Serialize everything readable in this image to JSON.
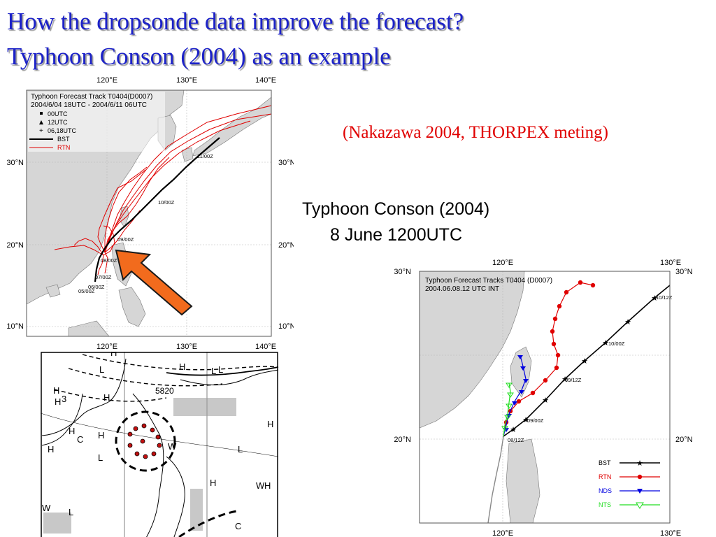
{
  "slide": {
    "title_line1": "How the dropsonde data improve the forecast?",
    "title_line2": "Typhoon Conson (2004) as an example",
    "citation": "(Nakazawa 2004, THORPEX meting)",
    "subtitle_line1": "Typhoon Conson (2004)",
    "subtitle_line2": "8 June 1200UTC"
  },
  "colors": {
    "title": "#1c22c8",
    "citation": "#e00000",
    "bst": "#000000",
    "rtn": "#e00000",
    "nds": "#0000e0",
    "nts": "#22dd22",
    "land": "#d6d6d6",
    "arrow": "#f26b1d"
  },
  "map_left": {
    "header_line1": "Typhoon Forecast Track T0404(D0007)",
    "header_line2": "2004/6/04 18UTC - 2004/6/11 06UTC",
    "legend": [
      "00UTC",
      "12UTC",
      "06,18UTC",
      "BST",
      "RTN"
    ],
    "top_ticks": [
      "120°E",
      "130°E",
      "140°E"
    ],
    "bottom_ticks": [
      "120°E",
      "130°E",
      "140°E"
    ],
    "left_ticks": [
      "30°N",
      "20°N",
      "10°N"
    ],
    "right_ticks": [
      "30°N",
      "20°N",
      "10°N"
    ],
    "track_labels": [
      "11/00Z",
      "10/00Z",
      "09/00Z",
      "08/00Z",
      "07/00Z",
      "06/00Z",
      "05/00Z"
    ]
  },
  "map_right": {
    "header_line1": "Typhoon Forecast Tracks T0404 (D0007)",
    "header_line2": "2004.06.08.12 UTC INT",
    "top_ticks": [
      "120°E",
      "130°E"
    ],
    "bottom_ticks": [
      "120°E",
      "130°E"
    ],
    "left_ticks": [
      "30°N",
      "20°N"
    ],
    "right_ticks": [
      "30°N",
      "20°N"
    ],
    "track_labels": [
      "10/12Z",
      "10/00Z",
      "09/12Z",
      "09/00Z",
      "08/12Z"
    ],
    "legend": [
      "BST",
      "RTN",
      "NDS",
      "NTS"
    ]
  },
  "map_weather": {
    "labels": [
      "H",
      "H",
      "H",
      "L",
      "L",
      "H",
      "H",
      "H",
      "C",
      "L",
      "H",
      "L",
      "W",
      "W",
      "H",
      "H",
      "L",
      "C",
      "H",
      "L",
      "W",
      "H"
    ],
    "contour_label": "5820",
    "digit": "3"
  }
}
